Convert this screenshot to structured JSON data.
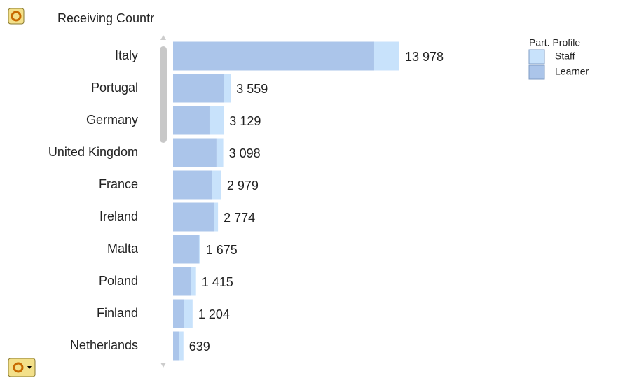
{
  "chart_data": {
    "type": "stacked-bar-horizontal",
    "title": "Receiving Countr",
    "categories": [
      "Italy",
      "Portugal",
      "Germany",
      "United Kingdom",
      "France",
      "Ireland",
      "Malta",
      "Poland",
      "Finland",
      "Netherlands"
    ],
    "series": [
      {
        "name": "Learner",
        "color": "#abc5ea",
        "values": [
          12420,
          3160,
          2250,
          2680,
          2420,
          2510,
          1600,
          1120,
          690,
          390
        ]
      },
      {
        "name": "Staff",
        "color": "#c8e2fb",
        "values": [
          1558,
          399,
          879,
          418,
          559,
          264,
          75,
          295,
          514,
          249
        ]
      }
    ],
    "totals": [
      13978,
      3559,
      3129,
      3098,
      2979,
      2774,
      1675,
      1415,
      1204,
      639
    ],
    "value_labels": [
      "13 978",
      "3 559",
      "3 129",
      "3 098",
      "2 979",
      "2 774",
      "1 675",
      "1 415",
      "1 204",
      "639"
    ],
    "xlim": [
      0,
      14000
    ],
    "legend": {
      "title": "Part. Profile",
      "position": "top-right",
      "order": [
        "Staff",
        "Learner"
      ]
    }
  }
}
